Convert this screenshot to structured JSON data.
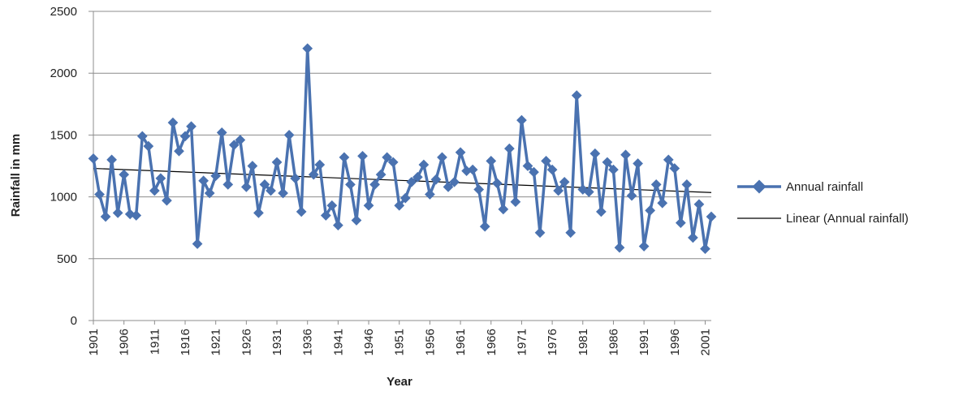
{
  "chart_data": {
    "type": "line",
    "title": "",
    "xlabel": "Year",
    "ylabel": "Rainfall in mm",
    "ylim": [
      0,
      2500
    ],
    "yticks": [
      0,
      500,
      1000,
      1500,
      2000,
      2500
    ],
    "xlim": [
      1901,
      2002
    ],
    "xtick_labels": [
      "1901",
      "1906",
      "1911",
      "1916",
      "1921",
      "1926",
      "1931",
      "1936",
      "1941",
      "1946",
      "1951",
      "1956",
      "1961",
      "1966",
      "1971",
      "1976",
      "1981",
      "1986",
      "1991",
      "1996",
      "2001"
    ],
    "grid": true,
    "legend_position": "right",
    "series_color": "#4a72b0",
    "trend_color": "#000000",
    "series": [
      {
        "name": "Annual rainfall",
        "x": [
          1901,
          1902,
          1903,
          1904,
          1905,
          1906,
          1907,
          1908,
          1909,
          1910,
          1911,
          1912,
          1913,
          1914,
          1915,
          1916,
          1917,
          1918,
          1919,
          1920,
          1921,
          1922,
          1923,
          1924,
          1925,
          1926,
          1927,
          1928,
          1929,
          1930,
          1931,
          1932,
          1933,
          1934,
          1935,
          1936,
          1937,
          1938,
          1939,
          1940,
          1941,
          1942,
          1943,
          1944,
          1945,
          1946,
          1947,
          1948,
          1949,
          1950,
          1951,
          1952,
          1953,
          1954,
          1955,
          1956,
          1957,
          1958,
          1959,
          1960,
          1961,
          1962,
          1963,
          1964,
          1965,
          1966,
          1967,
          1968,
          1969,
          1970,
          1971,
          1972,
          1973,
          1974,
          1975,
          1976,
          1977,
          1978,
          1979,
          1980,
          1981,
          1982,
          1983,
          1984,
          1985,
          1986,
          1987,
          1988,
          1989,
          1990,
          1991,
          1992,
          1993,
          1994,
          1995,
          1996,
          1997,
          1998,
          1999,
          2000,
          2001,
          2002
        ],
        "values": [
          1310,
          1020,
          840,
          1300,
          870,
          1180,
          860,
          850,
          1490,
          1410,
          1050,
          1150,
          970,
          1600,
          1370,
          1490,
          1570,
          620,
          1130,
          1030,
          1170,
          1520,
          1100,
          1420,
          1460,
          1080,
          1250,
          870,
          1100,
          1050,
          1280,
          1030,
          1500,
          1150,
          880,
          2200,
          1180,
          1260,
          850,
          930,
          770,
          1320,
          1100,
          810,
          1330,
          930,
          1100,
          1180,
          1320,
          1280,
          930,
          990,
          1120,
          1160,
          1260,
          1020,
          1140,
          1320,
          1080,
          1120,
          1360,
          1210,
          1220,
          1060,
          760,
          1290,
          1110,
          900,
          1390,
          960,
          1620,
          1250,
          1200,
          710,
          1290,
          1220,
          1050,
          1120,
          710,
          1820,
          1060,
          1040,
          1350,
          880,
          1280,
          1220,
          590,
          1340,
          1010,
          1270,
          600,
          890,
          1100,
          950,
          1300,
          1230,
          790,
          1100,
          670,
          940,
          580,
          840
        ]
      },
      {
        "name": "Linear (Annual rainfall)",
        "x": [
          1901,
          2002
        ],
        "values": [
          1230,
          1035
        ]
      }
    ]
  }
}
